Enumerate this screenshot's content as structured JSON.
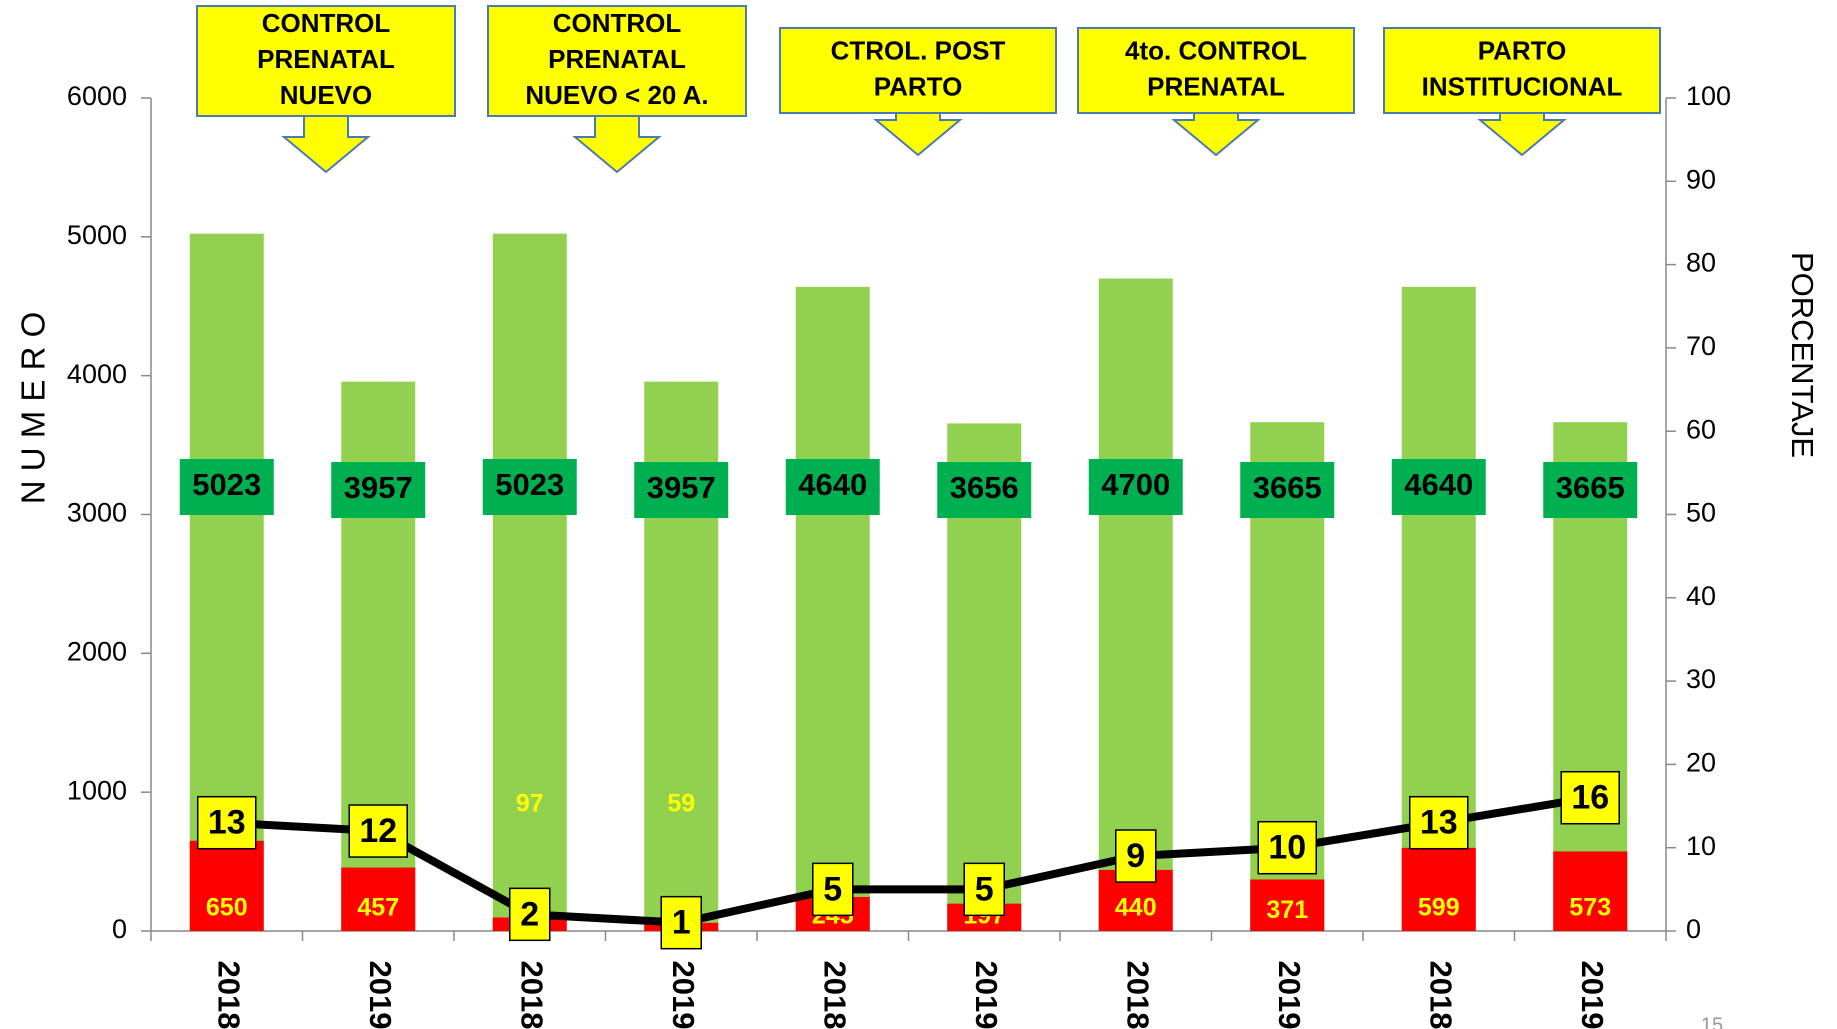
{
  "chart_data": {
    "type": "bar",
    "categories": [
      "2018",
      "2019",
      "2018",
      "2019",
      "2018",
      "2019",
      "2018",
      "2019",
      "2018",
      "2019"
    ],
    "groups": [
      [
        "CONTROL",
        "PRENATAL",
        "NUEVO"
      ],
      [
        "CONTROL",
        "PRENATAL",
        "NUEVO < 20 A."
      ],
      [
        "CTROL. POST",
        "PARTO"
      ],
      [
        "4to. CONTROL",
        "PRENATAL"
      ],
      [
        "PARTO",
        "INSTITUCIONAL"
      ]
    ],
    "series": [
      {
        "color": "#92d050",
        "values": [
          5023,
          3957,
          5023,
          3957,
          4640,
          3656,
          4700,
          3665,
          4640,
          3665
        ]
      },
      {
        "color": "#ff0000",
        "values": [
          650,
          457,
          97,
          59,
          245,
          197,
          440,
          371,
          599,
          573
        ]
      },
      {
        "color": "#000000",
        "axis": "y2",
        "values": [
          13,
          12,
          2,
          1,
          5,
          5,
          9,
          10,
          13,
          16
        ]
      }
    ],
    "ylabel": "N U M E R O",
    "y2label": "PORCENTAJE",
    "ylim": [
      0,
      6000
    ],
    "yticks": [
      0,
      1000,
      2000,
      3000,
      4000,
      5000,
      6000
    ],
    "y2lim": [
      0,
      100
    ],
    "y2ticks": [
      0,
      10,
      20,
      30,
      40,
      50,
      60,
      70,
      80,
      90,
      100
    ],
    "page_number": "15"
  }
}
